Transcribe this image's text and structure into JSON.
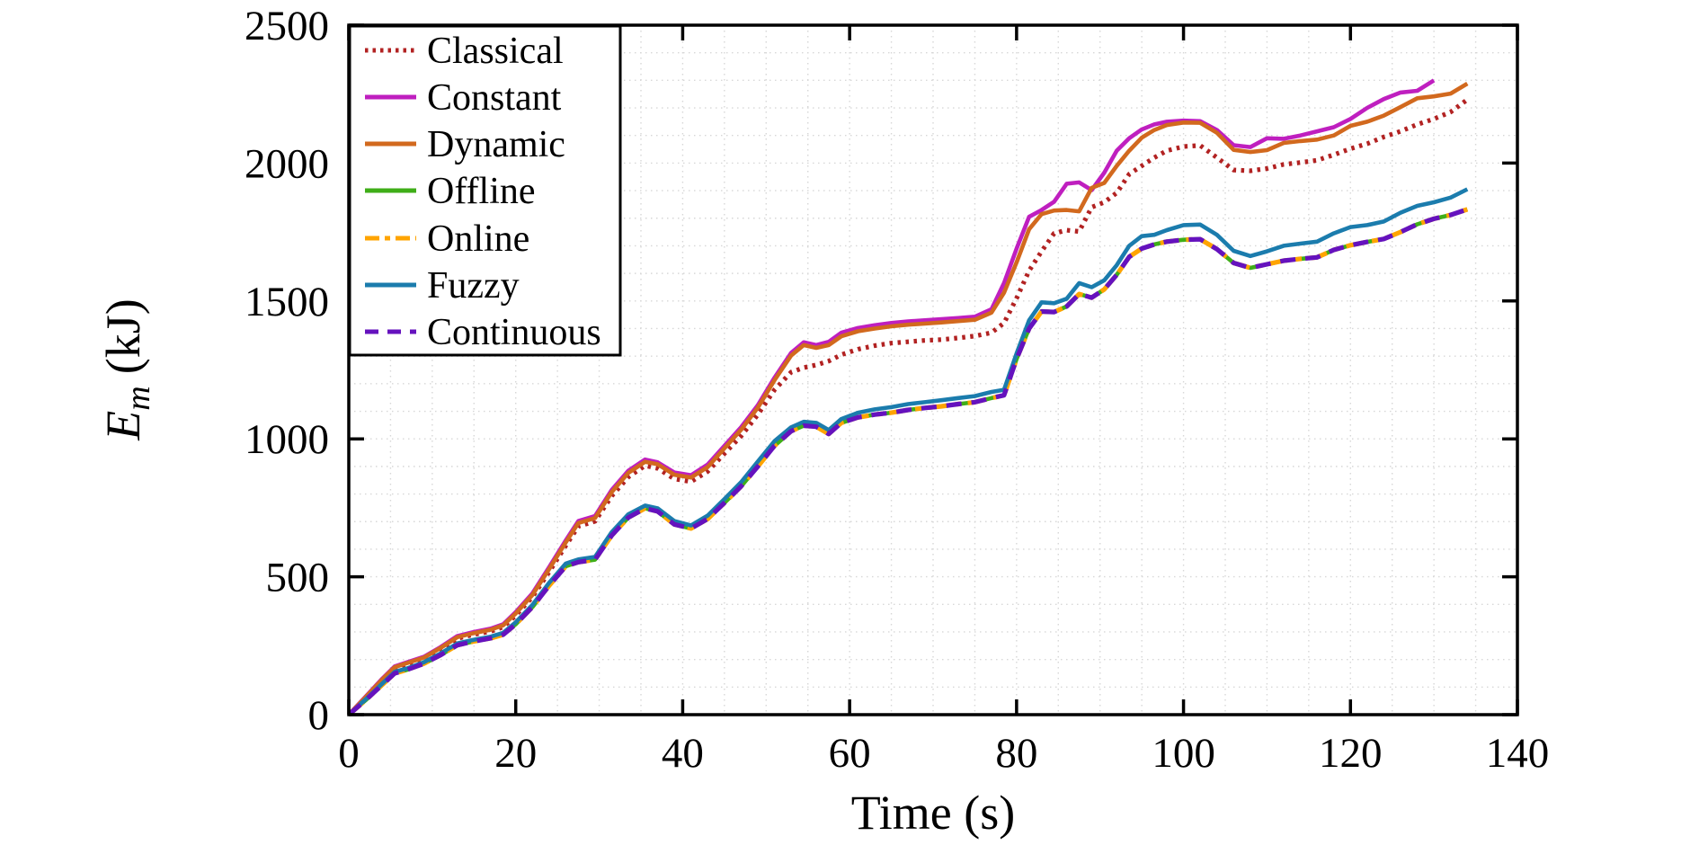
{
  "figure": {
    "background": "#FFFFFF",
    "ylabel": {
      "symbol": "E",
      "subscript": "m",
      "unit": "(kJ)"
    }
  },
  "chart_data": {
    "type": "line",
    "title": "",
    "xlabel": "Time (s)",
    "ylabel": "E_m (kJ)",
    "xlim": [
      0,
      140
    ],
    "ylim": [
      0,
      2500
    ],
    "xticks": [
      0,
      20,
      40,
      60,
      80,
      100,
      120,
      140
    ],
    "yticks": [
      0,
      500,
      1000,
      1500,
      2000,
      2500
    ],
    "grid": {
      "show": true,
      "minor_x_step": 5,
      "minor_y_step": 100,
      "style": "dotted",
      "color": "#D7D7D7"
    },
    "legend": {
      "position": "top-left",
      "border": true
    },
    "x": [
      0,
      2,
      4,
      5.5,
      7,
      9,
      11,
      13,
      15,
      17,
      18.5,
      20,
      22,
      24,
      26,
      27.5,
      29.5,
      31.5,
      33.5,
      35.5,
      37,
      39,
      41,
      43,
      45,
      47,
      49,
      51,
      53,
      54.5,
      56,
      57.5,
      59,
      61,
      63,
      65,
      67,
      69,
      71,
      73,
      75,
      77,
      78.5,
      80,
      81.5,
      83,
      84.5,
      86,
      87.5,
      89,
      90.5,
      92,
      93.5,
      95,
      96.5,
      98,
      100,
      102,
      104,
      106,
      108,
      110,
      112,
      114,
      116,
      118,
      120,
      122,
      124,
      126,
      128,
      130,
      132,
      134
    ],
    "series": [
      {
        "name": "Classical",
        "color": "#B22222",
        "style": "dotted",
        "values": [
          0,
          60,
          124,
          168,
          183,
          203,
          237,
          276,
          291,
          302,
          318,
          360,
          427,
          518,
          613,
          683,
          701,
          793,
          862,
          903,
          893,
          855,
          845,
          882,
          947,
          1010,
          1088,
          1178,
          1242,
          1258,
          1268,
          1282,
          1305,
          1325,
          1338,
          1347,
          1352,
          1357,
          1360,
          1366,
          1373,
          1385,
          1420,
          1510,
          1610,
          1680,
          1745,
          1757,
          1752,
          1840,
          1858,
          1892,
          1960,
          1990,
          2020,
          2045,
          2060,
          2064,
          2020,
          1975,
          1972,
          1980,
          1995,
          2002,
          2010,
          2030,
          2052,
          2070,
          2095,
          2115,
          2140,
          2160,
          2185,
          2230
        ]
      },
      {
        "name": "Constant",
        "color": "#BF1FBF",
        "style": "solid",
        "values": [
          0,
          65,
          130,
          175,
          190,
          210,
          245,
          285,
          300,
          312,
          328,
          372,
          440,
          535,
          632,
          702,
          720,
          815,
          885,
          925,
          915,
          878,
          868,
          907,
          975,
          1042,
          1122,
          1222,
          1312,
          1350,
          1340,
          1352,
          1385,
          1402,
          1412,
          1420,
          1426,
          1430,
          1434,
          1438,
          1443,
          1470,
          1565,
          1690,
          1805,
          1830,
          1860,
          1925,
          1930,
          1902,
          1965,
          2045,
          2090,
          2122,
          2140,
          2150,
          2154,
          2152,
          2120,
          2065,
          2058,
          2090,
          2088,
          2100,
          2115,
          2130,
          2160,
          2200,
          2232,
          2256,
          2262,
          2300,
          null,
          null
        ]
      },
      {
        "name": "Dynamic",
        "color": "#D2691E",
        "style": "solid",
        "values": [
          0,
          63,
          127,
          172,
          187,
          207,
          242,
          281,
          296,
          308,
          324,
          367,
          434,
          528,
          625,
          695,
          713,
          807,
          877,
          917,
          908,
          870,
          860,
          898,
          966,
          1033,
          1113,
          1213,
          1302,
          1340,
          1330,
          1340,
          1372,
          1390,
          1400,
          1408,
          1414,
          1418,
          1422,
          1427,
          1432,
          1458,
          1530,
          1640,
          1760,
          1815,
          1828,
          1830,
          1825,
          1910,
          1928,
          1990,
          2045,
          2092,
          2120,
          2138,
          2147,
          2146,
          2110,
          2048,
          2040,
          2047,
          2073,
          2080,
          2085,
          2100,
          2135,
          2150,
          2172,
          2203,
          2235,
          2242,
          2252,
          2288
        ]
      },
      {
        "name": "Offline",
        "color": "#3FAE18",
        "style": "solid",
        "values": [
          0,
          52,
          108,
          150,
          163,
          185,
          216,
          252,
          266,
          277,
          290,
          328,
          390,
          468,
          538,
          553,
          562,
          650,
          715,
          748,
          737,
          690,
          675,
          710,
          768,
          828,
          900,
          975,
          1028,
          1048,
          1044,
          1018,
          1058,
          1078,
          1088,
          1095,
          1105,
          1112,
          1118,
          1126,
          1133,
          1148,
          1158,
          1290,
          1400,
          1462,
          1460,
          1480,
          1525,
          1512,
          1542,
          1595,
          1660,
          1690,
          1705,
          1715,
          1722,
          1724,
          1688,
          1638,
          1620,
          1633,
          1646,
          1653,
          1658,
          1685,
          1702,
          1714,
          1725,
          1750,
          1778,
          1798,
          1812,
          1832
        ]
      },
      {
        "name": "Online",
        "color": "#FFA400",
        "style": "dashdot",
        "values": [
          0,
          52,
          108,
          150,
          163,
          185,
          216,
          252,
          266,
          277,
          290,
          328,
          390,
          468,
          538,
          553,
          562,
          650,
          715,
          748,
          737,
          690,
          675,
          710,
          768,
          828,
          900,
          975,
          1028,
          1048,
          1044,
          1018,
          1058,
          1078,
          1088,
          1095,
          1105,
          1112,
          1118,
          1126,
          1133,
          1148,
          1158,
          1290,
          1400,
          1462,
          1460,
          1480,
          1525,
          1512,
          1542,
          1595,
          1660,
          1690,
          1705,
          1715,
          1722,
          1724,
          1688,
          1638,
          1620,
          1633,
          1646,
          1653,
          1658,
          1685,
          1702,
          1714,
          1725,
          1750,
          1778,
          1798,
          1812,
          1832
        ]
      },
      {
        "name": "Fuzzy",
        "color": "#1B7CAD",
        "style": "solid",
        "values": [
          0,
          55,
          112,
          155,
          168,
          190,
          222,
          258,
          272,
          283,
          297,
          335,
          398,
          478,
          548,
          563,
          572,
          662,
          727,
          758,
          748,
          702,
          686,
          722,
          782,
          843,
          918,
          992,
          1042,
          1062,
          1058,
          1032,
          1072,
          1095,
          1107,
          1115,
          1126,
          1133,
          1140,
          1148,
          1155,
          1170,
          1178,
          1310,
          1430,
          1495,
          1492,
          1508,
          1565,
          1550,
          1575,
          1630,
          1700,
          1735,
          1740,
          1757,
          1775,
          1777,
          1740,
          1682,
          1663,
          1680,
          1700,
          1708,
          1715,
          1745,
          1768,
          1775,
          1788,
          1820,
          1845,
          1858,
          1875,
          1905
        ]
      },
      {
        "name": "Continuous",
        "color": "#6512BE",
        "style": "dashed",
        "values": [
          0,
          52,
          108,
          150,
          163,
          185,
          216,
          252,
          266,
          277,
          290,
          328,
          390,
          468,
          538,
          553,
          562,
          650,
          715,
          748,
          737,
          690,
          675,
          710,
          768,
          828,
          900,
          975,
          1028,
          1048,
          1044,
          1018,
          1058,
          1078,
          1088,
          1095,
          1105,
          1112,
          1118,
          1126,
          1133,
          1148,
          1158,
          1290,
          1400,
          1462,
          1460,
          1480,
          1525,
          1512,
          1542,
          1595,
          1660,
          1690,
          1705,
          1715,
          1722,
          1724,
          1688,
          1638,
          1620,
          1633,
          1646,
          1653,
          1658,
          1685,
          1702,
          1714,
          1725,
          1750,
          1778,
          1798,
          1812,
          1832
        ]
      }
    ]
  }
}
